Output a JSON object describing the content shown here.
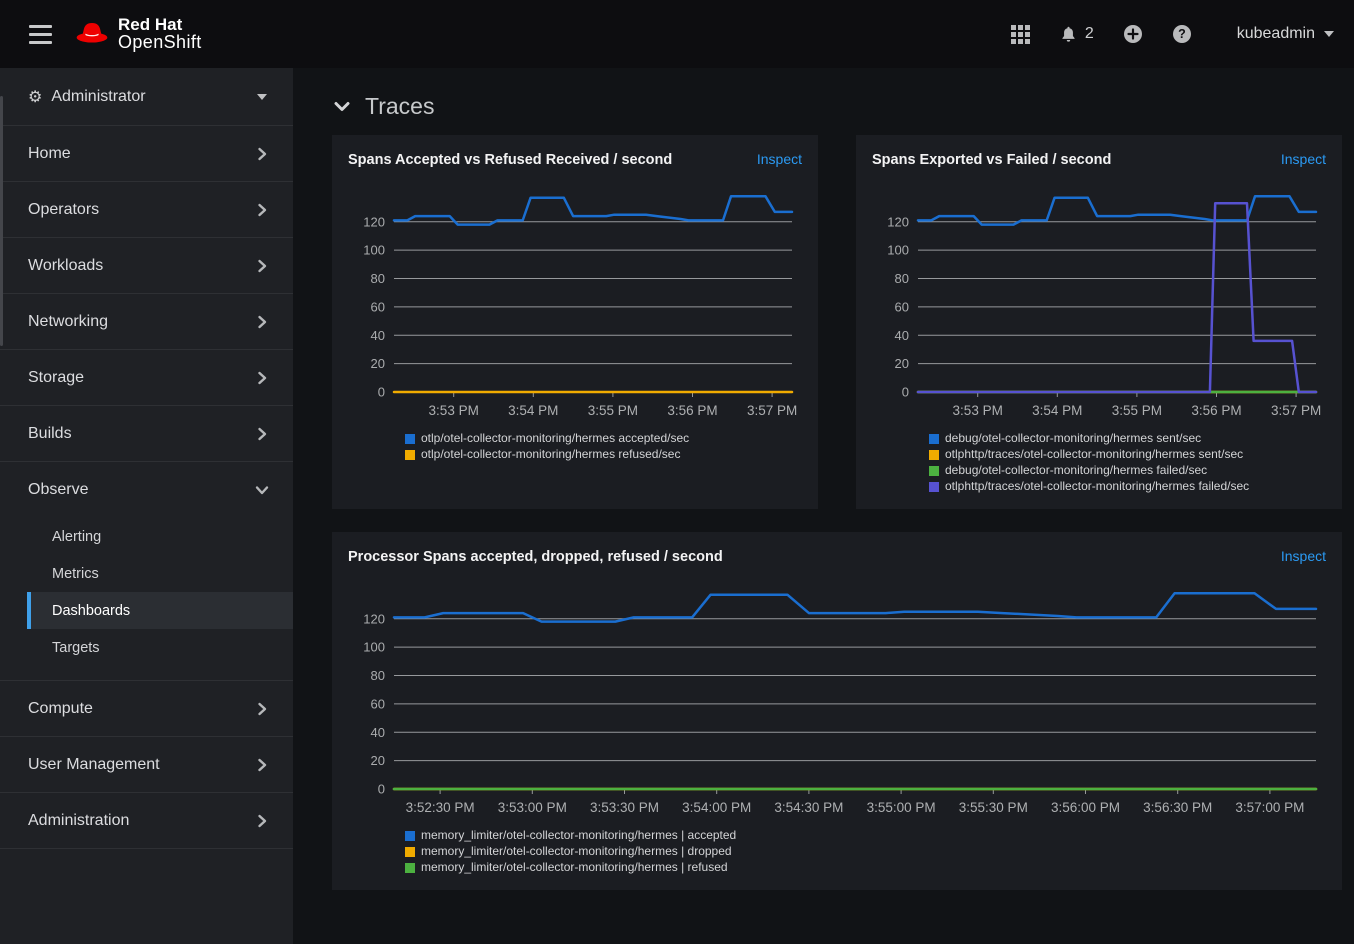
{
  "masthead": {
    "brand_line1": "Red Hat",
    "brand_line2": "OpenShift",
    "notification_count": "2",
    "username": "kubeadmin"
  },
  "icons": {
    "cogs_glyph": "⚙",
    "names": [
      "hamburger-menu",
      "redhat-fedora",
      "app-launcher-grid",
      "notification-bell",
      "add-circle",
      "help-circle",
      "caret-down",
      "cogs",
      "chevron-right",
      "chevron-down",
      "section-collapse-chevron"
    ]
  },
  "colors": {
    "accent_link": "#2b9af3",
    "selected_indicator": "#3fa0ea",
    "series_blue": "#1a6ed0",
    "series_gold": "#f0ab00",
    "series_green": "#4cb140",
    "series_purple": "#5752d1"
  },
  "sidebar": {
    "perspective_label": "Administrator",
    "items": [
      {
        "label": "Home"
      },
      {
        "label": "Operators"
      },
      {
        "label": "Workloads"
      },
      {
        "label": "Networking"
      },
      {
        "label": "Storage"
      },
      {
        "label": "Builds"
      },
      {
        "label": "Observe",
        "expanded": true,
        "children": [
          "Alerting",
          "Metrics",
          "Dashboards",
          "Targets"
        ],
        "selected_child": "Dashboards"
      },
      {
        "label": "Compute"
      },
      {
        "label": "User Management"
      },
      {
        "label": "Administration"
      }
    ]
  },
  "main": {
    "section_title": "Traces",
    "inspect_label": "Inspect"
  },
  "chart_data": [
    {
      "type": "line",
      "title": "Spans Accepted vs Refused Received / second",
      "xdomain": [
        0,
        300
      ],
      "ylim": [
        0,
        141
      ],
      "yticks": [
        0,
        20,
        40,
        60,
        80,
        100,
        120
      ],
      "grid": true,
      "legend_position": "bottom",
      "xticks": [
        {
          "t": 45,
          "label": "3:53 PM"
        },
        {
          "t": 105,
          "label": "3:54 PM"
        },
        {
          "t": 165,
          "label": "3:55 PM"
        },
        {
          "t": 225,
          "label": "3:56 PM"
        },
        {
          "t": 285,
          "label": "3:57 PM"
        }
      ],
      "series": [
        {
          "name": "otlp/otel-collector-monitoring/hermes accepted/sec",
          "color": "#1a6ed0",
          "points": [
            [
              0,
              121
            ],
            [
              10,
              121
            ],
            [
              16,
              124
            ],
            [
              42,
              124
            ],
            [
              48,
              118
            ],
            [
              72,
              118
            ],
            [
              78,
              121
            ],
            [
              97,
              121
            ],
            [
              103,
              137
            ],
            [
              128,
              137
            ],
            [
              135,
              124
            ],
            [
              160,
              124
            ],
            [
              166,
              125
            ],
            [
              190,
              125
            ],
            [
              198,
              124
            ],
            [
              216,
              122
            ],
            [
              222,
              121
            ],
            [
              248,
              121
            ],
            [
              254,
              138
            ],
            [
              280,
              138
            ],
            [
              287,
              127
            ],
            [
              300,
              127
            ]
          ]
        },
        {
          "name": "otlp/otel-collector-monitoring/hermes refused/sec",
          "color": "#f0ab00",
          "points": [
            [
              0,
              0
            ],
            [
              300,
              0
            ]
          ]
        }
      ]
    },
    {
      "type": "line",
      "title": "Spans Exported vs Failed / second",
      "xdomain": [
        0,
        300
      ],
      "ylim": [
        0,
        141
      ],
      "yticks": [
        0,
        20,
        40,
        60,
        80,
        100,
        120
      ],
      "grid": true,
      "legend_position": "bottom",
      "xticks": [
        {
          "t": 45,
          "label": "3:53 PM"
        },
        {
          "t": 105,
          "label": "3:54 PM"
        },
        {
          "t": 165,
          "label": "3:55 PM"
        },
        {
          "t": 225,
          "label": "3:56 PM"
        },
        {
          "t": 285,
          "label": "3:57 PM"
        }
      ],
      "series": [
        {
          "name": "debug/otel-collector-monitoring/hermes sent/sec",
          "color": "#1a6ed0",
          "points": [
            [
              0,
              121
            ],
            [
              10,
              121
            ],
            [
              16,
              124
            ],
            [
              42,
              124
            ],
            [
              48,
              118
            ],
            [
              72,
              118
            ],
            [
              78,
              121
            ],
            [
              97,
              121
            ],
            [
              103,
              137
            ],
            [
              128,
              137
            ],
            [
              135,
              124
            ],
            [
              160,
              124
            ],
            [
              166,
              125
            ],
            [
              190,
              125
            ],
            [
              198,
              124
            ],
            [
              216,
              122
            ],
            [
              222,
              121
            ],
            [
              248,
              121
            ],
            [
              254,
              138
            ],
            [
              280,
              138
            ],
            [
              287,
              127
            ],
            [
              300,
              127
            ]
          ]
        },
        {
          "name": "otlphttp/traces/otel-collector-monitoring/hermes sent/sec",
          "color": "#f0ab00",
          "points": [
            [
              0,
              0
            ],
            [
              300,
              0
            ]
          ]
        },
        {
          "name": "debug/otel-collector-monitoring/hermes failed/sec",
          "color": "#4cb140",
          "points": [
            [
              0,
              0
            ],
            [
              300,
              0
            ]
          ]
        },
        {
          "name": "otlphttp/traces/otel-collector-monitoring/hermes failed/sec",
          "color": "#5752d1",
          "points": [
            [
              0,
              0
            ],
            [
              220,
              0
            ],
            [
              224,
              133
            ],
            [
              248,
              133
            ],
            [
              253,
              36
            ],
            [
              282,
              36
            ],
            [
              287,
              0
            ],
            [
              300,
              0
            ]
          ]
        }
      ]
    },
    {
      "type": "line",
      "title": "Processor Spans accepted, dropped, refused / second",
      "xdomain": [
        0,
        300
      ],
      "ylim": [
        0,
        141
      ],
      "yticks": [
        0,
        20,
        40,
        60,
        80,
        100,
        120
      ],
      "grid": true,
      "legend_position": "bottom",
      "xticks": [
        {
          "t": 15,
          "label": "3:52:30 PM"
        },
        {
          "t": 45,
          "label": "3:53:00 PM"
        },
        {
          "t": 75,
          "label": "3:53:30 PM"
        },
        {
          "t": 105,
          "label": "3:54:00 PM"
        },
        {
          "t": 135,
          "label": "3:54:30 PM"
        },
        {
          "t": 165,
          "label": "3:55:00 PM"
        },
        {
          "t": 195,
          "label": "3:55:30 PM"
        },
        {
          "t": 225,
          "label": "3:56:00 PM"
        },
        {
          "t": 255,
          "label": "3:56:30 PM"
        },
        {
          "t": 285,
          "label": "3:57:00 PM"
        }
      ],
      "series": [
        {
          "name": "memory_limiter/otel-collector-monitoring/hermes | accepted",
          "color": "#1a6ed0",
          "points": [
            [
              0,
              121
            ],
            [
              10,
              121
            ],
            [
              16,
              124
            ],
            [
              42,
              124
            ],
            [
              48,
              118
            ],
            [
              72,
              118
            ],
            [
              78,
              121
            ],
            [
              97,
              121
            ],
            [
              103,
              137
            ],
            [
              128,
              137
            ],
            [
              135,
              124
            ],
            [
              160,
              124
            ],
            [
              166,
              125
            ],
            [
              190,
              125
            ],
            [
              198,
              124
            ],
            [
              216,
              122
            ],
            [
              222,
              121
            ],
            [
              248,
              121
            ],
            [
              254,
              138
            ],
            [
              280,
              138
            ],
            [
              287,
              127
            ],
            [
              300,
              127
            ]
          ]
        },
        {
          "name": "memory_limiter/otel-collector-monitoring/hermes | dropped",
          "color": "#f0ab00",
          "points": [
            [
              0,
              0
            ],
            [
              300,
              0
            ]
          ]
        },
        {
          "name": "memory_limiter/otel-collector-monitoring/hermes | refused",
          "color": "#4cb140",
          "points": [
            [
              0,
              0
            ],
            [
              300,
              0
            ]
          ]
        }
      ]
    }
  ]
}
